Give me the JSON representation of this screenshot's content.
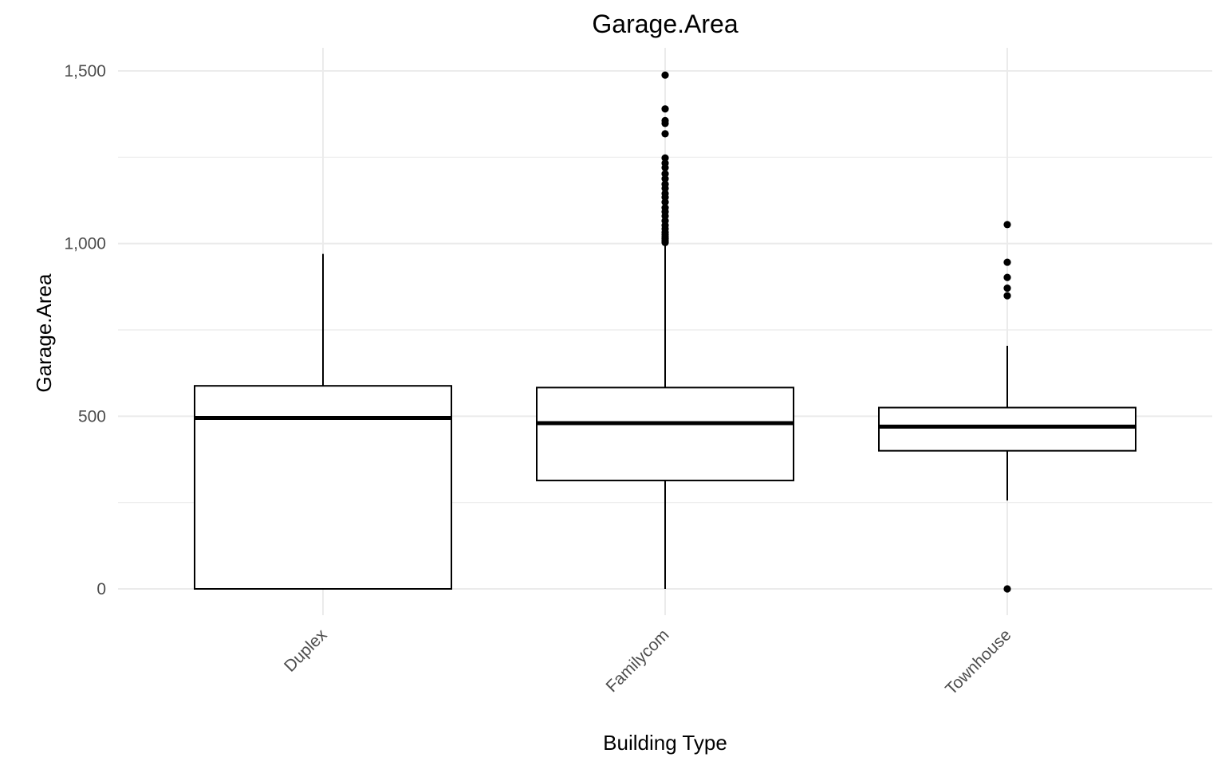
{
  "chart_data": {
    "type": "box",
    "title": "Garage.Area",
    "xlabel": "Building Type",
    "ylabel": "Garage.Area",
    "ylim": [
      -75,
      1560
    ],
    "yticks": [
      0,
      500,
      1000,
      1500
    ],
    "ytick_labels": [
      "0",
      "500",
      "1,000",
      "1,500"
    ],
    "y_minor_gridlines": [
      250,
      750,
      1250
    ],
    "grid": true,
    "x_tick_label_rotation": "45 degrees",
    "colors": {
      "box_fill": "#ffffff",
      "box_stroke": "#000000",
      "grid": "#ebebeb",
      "tick_label": "#4d4d4d"
    },
    "categories": [
      "Duplex",
      "Familycom",
      "Townhouse"
    ],
    "boxes": [
      {
        "category": "Duplex",
        "whisker_low": 0,
        "q1": 0,
        "median": 495,
        "q3": 588,
        "whisker_high": 970,
        "outliers": []
      },
      {
        "category": "Familycom",
        "whisker_low": 0,
        "q1": 314,
        "median": 480,
        "q3": 583,
        "whisker_high": 995,
        "outliers": [
          1003,
          1008,
          1014,
          1020,
          1026,
          1033,
          1043,
          1053,
          1066,
          1080,
          1092,
          1104,
          1120,
          1134,
          1145,
          1160,
          1172,
          1188,
          1202,
          1220,
          1233,
          1248,
          1318,
          1348,
          1356,
          1390,
          1488
        ]
      },
      {
        "category": "Townhouse",
        "whisker_low": 256,
        "q1": 400,
        "median": 470,
        "q3": 525,
        "whisker_high": 704,
        "outliers": [
          0,
          849,
          871,
          902,
          946,
          1055
        ]
      }
    ]
  }
}
